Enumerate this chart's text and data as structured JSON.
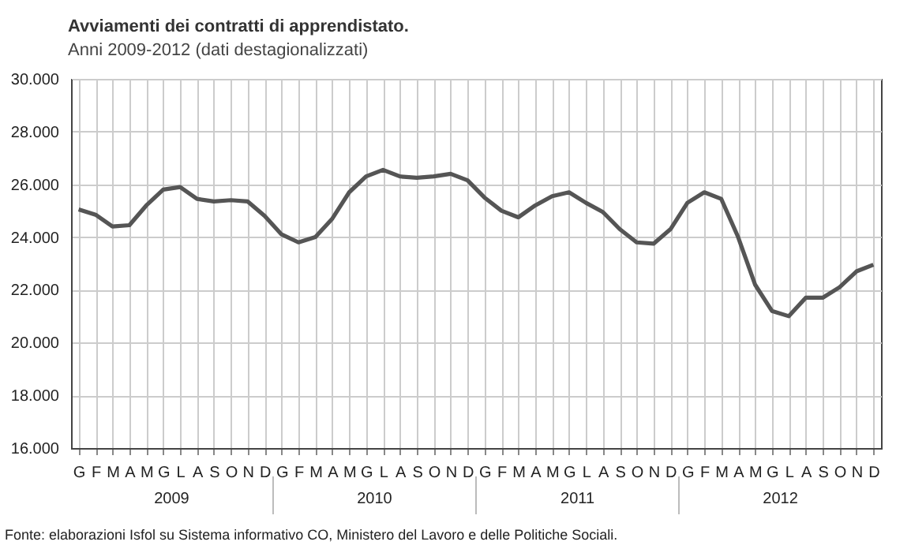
{
  "chart_data": {
    "type": "line",
    "title": "Avviamenti dei contratti di apprendistato.",
    "subtitle": "Anni 2009-2012 (dati destagionalizzati)",
    "categories": [
      "G",
      "F",
      "M",
      "A",
      "M",
      "G",
      "L",
      "A",
      "S",
      "O",
      "N",
      "D",
      "G",
      "F",
      "M",
      "A",
      "M",
      "G",
      "L",
      "A",
      "S",
      "O",
      "N",
      "D",
      "G",
      "F",
      "M",
      "A",
      "M",
      "G",
      "L",
      "A",
      "S",
      "O",
      "N",
      "D",
      "G",
      "F",
      "M",
      "A",
      "M",
      "G",
      "L",
      "A",
      "S",
      "O",
      "N",
      "D"
    ],
    "series": [
      {
        "color": "#555555",
        "values": [
          25050,
          24850,
          24400,
          24450,
          25200,
          25800,
          25900,
          25450,
          25350,
          25400,
          25350,
          24800,
          24100,
          23800,
          24000,
          24700,
          25700,
          26300,
          26550,
          26300,
          26250,
          26300,
          26400,
          26150,
          25500,
          25000,
          24750,
          25200,
          25550,
          25700,
          25300,
          24950,
          24300,
          23800,
          23750,
          24300,
          25300,
          25700,
          25450,
          24000,
          22200,
          21200,
          21000,
          21700,
          21700,
          22100,
          22700,
          22950
        ]
      }
    ],
    "ylim": [
      16000,
      30000
    ],
    "yticks": [
      {
        "value": 16000,
        "label": "16.000"
      },
      {
        "value": 18000,
        "label": "18.000"
      },
      {
        "value": 20000,
        "label": "20.000"
      },
      {
        "value": 22000,
        "label": "22.000"
      },
      {
        "value": 24000,
        "label": "24.000"
      },
      {
        "value": 26000,
        "label": "26.000"
      },
      {
        "value": 28000,
        "label": "28.000"
      },
      {
        "value": 30000,
        "label": "30.000"
      }
    ],
    "grid": true,
    "legend": false,
    "marker": "none",
    "line_style": "solid",
    "annotations": [
      "2009",
      "2010",
      "2011",
      "2012",
      "Fonte: elaborazioni Isfol su Sistema informativo CO, Ministero del Lavoro e delle Politiche Sociali."
    ]
  }
}
